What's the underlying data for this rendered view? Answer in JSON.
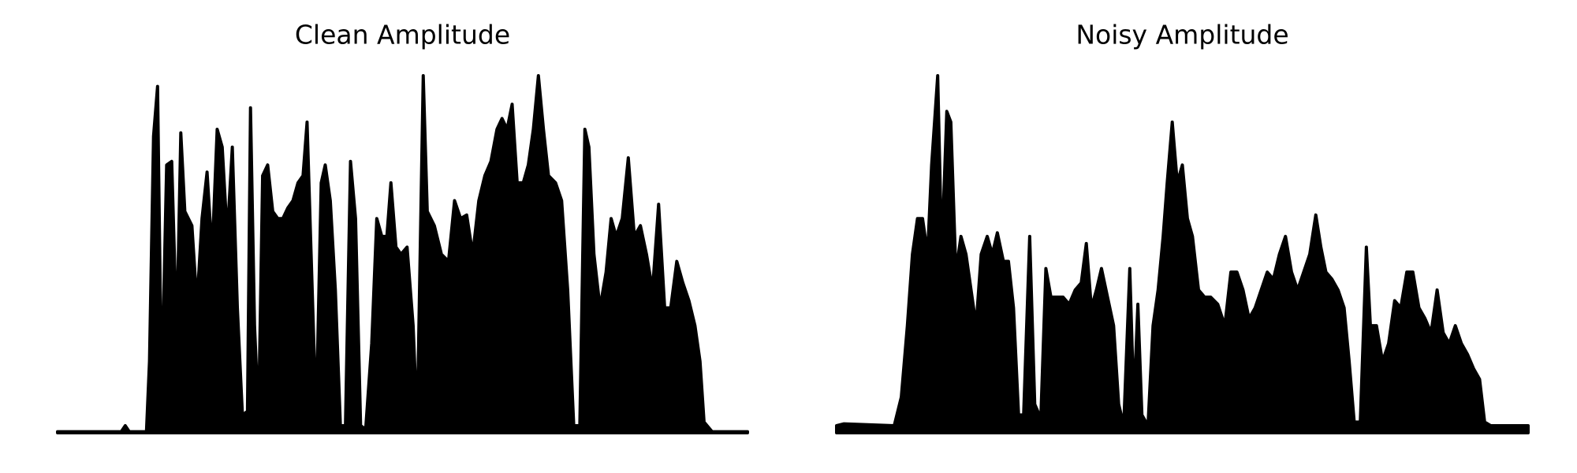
{
  "chart_data": [
    {
      "type": "area",
      "title": "Clean Amplitude",
      "color": "#000000",
      "xlim": [
        57,
        740
      ],
      "ylim": [
        0,
        1
      ],
      "x": [
        57,
        120,
        124,
        128,
        145,
        148,
        152,
        156,
        160,
        165,
        170,
        175,
        179,
        183,
        190,
        195,
        200,
        205,
        210,
        215,
        220,
        225,
        230,
        235,
        240,
        245,
        248,
        252,
        256,
        260,
        265,
        270,
        275,
        280,
        285,
        290,
        295,
        300,
        304,
        308,
        313,
        318,
        322,
        327,
        332,
        337,
        342,
        347,
        352,
        357,
        362,
        368,
        373,
        378,
        383,
        387,
        392,
        397,
        403,
        409,
        413,
        419,
        423,
        430,
        437,
        444,
        450,
        456,
        462,
        468,
        474,
        480,
        486,
        492,
        497,
        502,
        507,
        512,
        518,
        523,
        528,
        533,
        538,
        543,
        550,
        556,
        562,
        568,
        574,
        579,
        583,
        588,
        594,
        600,
        605,
        610,
        616,
        622,
        628,
        634,
        640,
        646,
        652,
        658,
        664,
        670,
        676,
        682,
        688,
        693,
        697,
        705,
        740
      ],
      "values": [
        0.003,
        0.003,
        0.02,
        0.003,
        0.003,
        0.2,
        0.83,
        0.97,
        0.1,
        0.75,
        0.76,
        0.27,
        0.84,
        0.62,
        0.58,
        0.36,
        0.6,
        0.73,
        0.5,
        0.85,
        0.8,
        0.55,
        0.8,
        0.35,
        0.05,
        0.06,
        0.91,
        0.3,
        0.04,
        0.72,
        0.75,
        0.62,
        0.6,
        0.6,
        0.63,
        0.65,
        0.7,
        0.72,
        0.87,
        0.5,
        0.04,
        0.7,
        0.75,
        0.65,
        0.4,
        0.02,
        0.02,
        0.76,
        0.6,
        0.02,
        0.01,
        0.25,
        0.6,
        0.55,
        0.55,
        0.7,
        0.52,
        0.5,
        0.52,
        0.3,
        0.02,
        1.0,
        0.62,
        0.58,
        0.5,
        0.48,
        0.65,
        0.6,
        0.61,
        0.5,
        0.65,
        0.72,
        0.76,
        0.85,
        0.88,
        0.85,
        0.92,
        0.7,
        0.7,
        0.75,
        0.85,
        1.0,
        0.85,
        0.72,
        0.7,
        0.65,
        0.4,
        0.02,
        0.02,
        0.85,
        0.8,
        0.5,
        0.35,
        0.45,
        0.6,
        0.55,
        0.6,
        0.77,
        0.55,
        0.58,
        0.5,
        0.4,
        0.64,
        0.35,
        0.35,
        0.48,
        0.42,
        0.37,
        0.3,
        0.2,
        0.03,
        0.003,
        0.003
      ]
    },
    {
      "type": "area",
      "title": "Noisy Amplitude",
      "color": "#000000",
      "xlim": [
        828,
        1512
      ],
      "ylim": [
        0,
        1
      ],
      "x": [
        828,
        835,
        885,
        892,
        898,
        903,
        908,
        913,
        918,
        922,
        928,
        932,
        937,
        941,
        946,
        951,
        956,
        961,
        966,
        971,
        977,
        982,
        987,
        993,
        998,
        1003,
        1008,
        1013,
        1019,
        1024,
        1030,
        1035,
        1040,
        1046,
        1052,
        1058,
        1064,
        1070,
        1075,
        1080,
        1085,
        1090,
        1096,
        1102,
        1107,
        1112,
        1118,
        1122,
        1126,
        1130,
        1136,
        1141,
        1146,
        1151,
        1155,
        1160,
        1165,
        1170,
        1175,
        1180,
        1186,
        1192,
        1198,
        1205,
        1212,
        1218,
        1224,
        1230,
        1236,
        1242,
        1248,
        1254,
        1260,
        1266,
        1272,
        1278,
        1284,
        1290,
        1296,
        1302,
        1307,
        1312,
        1318,
        1324,
        1330,
        1335,
        1340,
        1346,
        1352,
        1356,
        1362,
        1368,
        1374,
        1380,
        1386,
        1392,
        1398,
        1404,
        1410,
        1416,
        1422,
        1428,
        1434,
        1440,
        1446,
        1452,
        1458,
        1464,
        1469,
        1475,
        1480,
        1486,
        1512
      ],
      "values": [
        0.02,
        0.025,
        0.02,
        0.1,
        0.3,
        0.5,
        0.6,
        0.6,
        0.5,
        0.75,
        1.0,
        0.5,
        0.9,
        0.87,
        0.45,
        0.55,
        0.5,
        0.4,
        0.3,
        0.5,
        0.55,
        0.5,
        0.56,
        0.48,
        0.48,
        0.35,
        0.05,
        0.05,
        0.55,
        0.08,
        0.04,
        0.46,
        0.38,
        0.38,
        0.38,
        0.36,
        0.4,
        0.42,
        0.53,
        0.35,
        0.4,
        0.46,
        0.38,
        0.3,
        0.08,
        0.02,
        0.46,
        0.08,
        0.36,
        0.05,
        0.02,
        0.3,
        0.4,
        0.55,
        0.7,
        0.87,
        0.7,
        0.75,
        0.6,
        0.55,
        0.4,
        0.38,
        0.38,
        0.36,
        0.3,
        0.45,
        0.45,
        0.4,
        0.32,
        0.35,
        0.4,
        0.45,
        0.43,
        0.5,
        0.55,
        0.45,
        0.4,
        0.45,
        0.5,
        0.61,
        0.52,
        0.45,
        0.43,
        0.4,
        0.35,
        0.2,
        0.03,
        0.03,
        0.52,
        0.3,
        0.3,
        0.2,
        0.25,
        0.37,
        0.35,
        0.45,
        0.45,
        0.35,
        0.32,
        0.28,
        0.4,
        0.28,
        0.25,
        0.3,
        0.25,
        0.22,
        0.18,
        0.15,
        0.03,
        0.02,
        0.02,
        0.02,
        0.02
      ]
    }
  ]
}
